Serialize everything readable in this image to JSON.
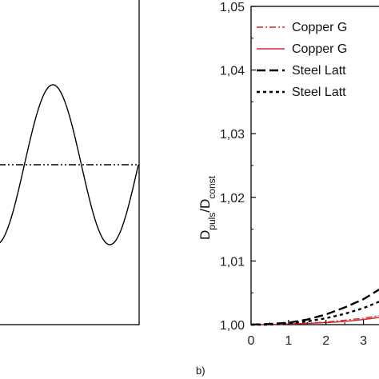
{
  "chart_data": [
    {
      "type": "line",
      "panel": "a",
      "description_free": true,
      "series": [
        {
          "name": "",
          "style": "solid",
          "color": "#000000",
          "x": [
            0,
            0.25,
            0.5,
            0.75,
            1,
            1.25,
            1.5,
            1.75,
            2,
            2.25,
            2.5,
            2.75,
            3,
            3.25,
            3.5,
            3.75,
            4,
            4.25,
            4.5,
            4.75,
            5,
            5.25,
            5.5,
            5.75,
            6,
            6.25,
            6.5,
            6.75,
            7,
            7.25,
            7.5,
            7.75,
            8
          ],
          "y": [
            0,
            0.38,
            0.71,
            0.92,
            1,
            0.92,
            0.71,
            0.38,
            0,
            -0.38,
            -0.71,
            -0.92,
            -1,
            -0.92,
            -0.71,
            -0.38,
            0,
            0.38,
            0.71,
            0.92,
            1,
            0.92,
            0.71,
            0.38,
            0,
            -0.38,
            -0.71,
            -0.92,
            -1,
            -0.92,
            -0.71,
            -0.38,
            0
          ]
        },
        {
          "name": "",
          "style": "dash-dot-dot",
          "color": "#000000",
          "x": [
            0,
            8
          ],
          "y": [
            0,
            0
          ]
        }
      ]
    },
    {
      "type": "line",
      "panel": "b",
      "ylabel_main": "D",
      "ylabel_sub1": "puls",
      "ylabel_mid": "/D",
      "ylabel_sub2": "const",
      "xticks": [
        "0",
        "1",
        "2",
        "3"
      ],
      "yticks": [
        "1,00",
        "1,01",
        "1,02",
        "1,03",
        "1,04",
        "1,05"
      ],
      "ylim": [
        1.0,
        1.05
      ],
      "xlim": [
        0,
        3.5
      ],
      "legend_position": "top-right",
      "series": [
        {
          "name": "Copper G",
          "style": "dash-dot",
          "color": "#d62728",
          "x": [
            0,
            0.5,
            1,
            1.5,
            2,
            2.5,
            3,
            3.5
          ],
          "y": [
            1.0,
            1.0,
            1.0001,
            1.0002,
            1.0004,
            1.0007,
            1.001,
            1.0015
          ]
        },
        {
          "name": "Copper G",
          "style": "solid",
          "color": "#d62728",
          "x": [
            0,
            0.5,
            1,
            1.5,
            2,
            2.5,
            3,
            3.5
          ],
          "y": [
            1.0,
            1.0,
            1.0001,
            1.0002,
            1.0003,
            1.0005,
            1.0008,
            1.0012
          ]
        },
        {
          "name": "Steel Latt",
          "style": "long-dash",
          "color": "#000000",
          "x": [
            0,
            0.5,
            1,
            1.5,
            2,
            2.5,
            3,
            3.5
          ],
          "y": [
            1.0,
            1.0001,
            1.0003,
            1.0008,
            1.0016,
            1.0027,
            1.004,
            1.0058
          ]
        },
        {
          "name": "Steel Latt",
          "style": "short-dash",
          "color": "#000000",
          "x": [
            0,
            0.5,
            1,
            1.5,
            2,
            2.5,
            3,
            3.5
          ],
          "y": [
            1.0,
            1.0,
            1.0002,
            1.0005,
            1.001,
            1.0017,
            1.0026,
            1.0038
          ]
        }
      ]
    }
  ],
  "labels": {
    "panel_b": "b)"
  }
}
